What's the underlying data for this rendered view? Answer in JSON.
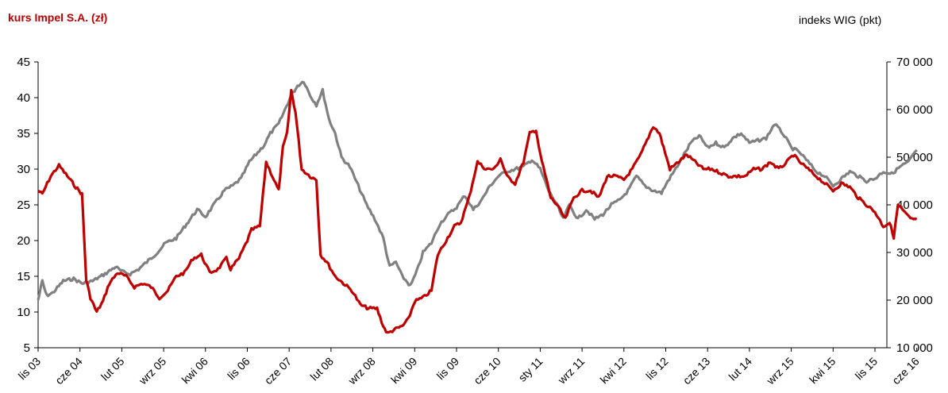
{
  "chart_data": {
    "type": "line",
    "left_axis_title": "kurs Impel S.A. (zł)",
    "right_axis_title": "indeks WIG (pkt)",
    "left_ticks": [
      "5",
      "10",
      "15",
      "20",
      "25",
      "30",
      "35",
      "40",
      "45"
    ],
    "left_ylim": [
      5,
      45
    ],
    "right_ticks": [
      "10 000",
      "20 000",
      "30 000",
      "40 000",
      "50 000",
      "60 000",
      "70 000"
    ],
    "right_ylim": [
      10000,
      70000
    ],
    "categories": [
      "lis 03",
      "cze 04",
      "lut 05",
      "wrz 05",
      "kwi 06",
      "lis 06",
      "cze 07",
      "lut 08",
      "wrz 08",
      "kwi 09",
      "lis 09",
      "cze 10",
      "sty 11",
      "wrz 11",
      "kwi 12",
      "lis 12",
      "cze 13",
      "lut 14",
      "wrz 15",
      "kwi 15",
      "lis 15",
      "cze 16"
    ],
    "grid": false,
    "colors": {
      "impel": "#c00000",
      "wig": "#808080"
    },
    "series": [
      {
        "axis": "left",
        "color": "#c00000",
        "values": [
          [
            0,
            27
          ],
          [
            0.1,
            26.5
          ],
          [
            0.3,
            29
          ],
          [
            0.5,
            30.5
          ],
          [
            0.7,
            29
          ],
          [
            0.9,
            27.5
          ],
          [
            1.05,
            26.5
          ],
          [
            1.15,
            14.5
          ],
          [
            1.25,
            12
          ],
          [
            1.4,
            10
          ],
          [
            1.55,
            11.5
          ],
          [
            1.7,
            14
          ],
          [
            1.9,
            15.5
          ],
          [
            2.1,
            15
          ],
          [
            2.3,
            13.5
          ],
          [
            2.5,
            14
          ],
          [
            2.7,
            13.5
          ],
          [
            2.9,
            12
          ],
          [
            3.1,
            13
          ],
          [
            3.3,
            15
          ],
          [
            3.5,
            15.5
          ],
          [
            3.7,
            17.5
          ],
          [
            3.9,
            18
          ],
          [
            4.1,
            15.5
          ],
          [
            4.3,
            16
          ],
          [
            4.5,
            17.5
          ],
          [
            4.6,
            16
          ],
          [
            4.8,
            17.5
          ],
          [
            5.0,
            20
          ],
          [
            5.1,
            21.5
          ],
          [
            5.3,
            22
          ],
          [
            5.45,
            31
          ],
          [
            5.6,
            29
          ],
          [
            5.75,
            27
          ],
          [
            5.85,
            33
          ],
          [
            5.95,
            35
          ],
          [
            6.05,
            41
          ],
          [
            6.15,
            38
          ],
          [
            6.3,
            30
          ],
          [
            6.5,
            29
          ],
          [
            6.65,
            28.5
          ],
          [
            6.75,
            18
          ],
          [
            6.9,
            17
          ],
          [
            7.1,
            15
          ],
          [
            7.3,
            14
          ],
          [
            7.5,
            13
          ],
          [
            7.7,
            11
          ],
          [
            7.9,
            10.5
          ],
          [
            8.1,
            10.5
          ],
          [
            8.25,
            8
          ],
          [
            8.35,
            7
          ],
          [
            8.5,
            7.5
          ],
          [
            8.7,
            8
          ],
          [
            8.85,
            9
          ],
          [
            9.0,
            11.5
          ],
          [
            9.2,
            12
          ],
          [
            9.4,
            13
          ],
          [
            9.55,
            18
          ],
          [
            9.75,
            20
          ],
          [
            9.95,
            22
          ],
          [
            10.1,
            22.5
          ],
          [
            10.3,
            26
          ],
          [
            10.5,
            31
          ],
          [
            10.7,
            30
          ],
          [
            10.9,
            30
          ],
          [
            11.05,
            31.5
          ],
          [
            11.2,
            29
          ],
          [
            11.4,
            28
          ],
          [
            11.6,
            31
          ],
          [
            11.75,
            35
          ],
          [
            11.9,
            35.5
          ],
          [
            12.0,
            32
          ],
          [
            12.15,
            28.5
          ],
          [
            12.25,
            26
          ],
          [
            12.4,
            25
          ],
          [
            12.6,
            23
          ],
          [
            12.8,
            26
          ],
          [
            13.0,
            27
          ],
          [
            13.2,
            27
          ],
          [
            13.4,
            26
          ],
          [
            13.6,
            29
          ],
          [
            13.8,
            29
          ],
          [
            14.0,
            28.5
          ],
          [
            14.2,
            30
          ],
          [
            14.4,
            32
          ],
          [
            14.55,
            34
          ],
          [
            14.7,
            36
          ],
          [
            14.85,
            35
          ],
          [
            14.95,
            33
          ],
          [
            15.1,
            30
          ],
          [
            15.3,
            31
          ],
          [
            15.5,
            32
          ],
          [
            15.7,
            31
          ],
          [
            15.9,
            30
          ],
          [
            16.1,
            30
          ],
          [
            16.3,
            29.5
          ],
          [
            16.5,
            29
          ],
          [
            16.7,
            29
          ],
          [
            16.9,
            29
          ],
          [
            17.1,
            30
          ],
          [
            17.3,
            30
          ],
          [
            17.5,
            31
          ],
          [
            17.7,
            30
          ],
          [
            17.9,
            31
          ],
          [
            18.05,
            32
          ],
          [
            18.2,
            31
          ],
          [
            18.4,
            30
          ],
          [
            18.6,
            29
          ],
          [
            18.8,
            28
          ],
          [
            19.0,
            27
          ],
          [
            19.2,
            28
          ],
          [
            19.4,
            27.5
          ],
          [
            19.6,
            26
          ],
          [
            19.8,
            25
          ],
          [
            20.0,
            24
          ],
          [
            20.2,
            22
          ],
          [
            20.35,
            22.5
          ],
          [
            20.45,
            20.5
          ],
          [
            20.55,
            25
          ],
          [
            20.7,
            24
          ],
          [
            20.85,
            23
          ],
          [
            21.0,
            23
          ]
        ]
      },
      {
        "axis": "right",
        "color": "#808080",
        "values": [
          [
            0,
            20000
          ],
          [
            0.1,
            24000
          ],
          [
            0.2,
            21000
          ],
          [
            0.35,
            21500
          ],
          [
            0.6,
            24000
          ],
          [
            0.85,
            24500
          ],
          [
            1.05,
            23500
          ],
          [
            1.3,
            24000
          ],
          [
            1.6,
            25500
          ],
          [
            1.85,
            27000
          ],
          [
            2.0,
            26000
          ],
          [
            2.2,
            25500
          ],
          [
            2.4,
            26500
          ],
          [
            2.6,
            28000
          ],
          [
            2.85,
            30000
          ],
          [
            3.05,
            32000
          ],
          [
            3.3,
            33000
          ],
          [
            3.55,
            36000
          ],
          [
            3.8,
            39000
          ],
          [
            4.0,
            37500
          ],
          [
            4.2,
            40000
          ],
          [
            4.45,
            43000
          ],
          [
            4.65,
            44000
          ],
          [
            4.85,
            45500
          ],
          [
            5.05,
            49000
          ],
          [
            5.25,
            51000
          ],
          [
            5.4,
            52500
          ],
          [
            5.55,
            55000
          ],
          [
            5.75,
            57000
          ],
          [
            5.9,
            60000
          ],
          [
            6.05,
            63000
          ],
          [
            6.2,
            65000
          ],
          [
            6.35,
            66000
          ],
          [
            6.5,
            63000
          ],
          [
            6.65,
            61000
          ],
          [
            6.8,
            64000
          ],
          [
            6.95,
            58000
          ],
          [
            7.1,
            55000
          ],
          [
            7.25,
            50000
          ],
          [
            7.45,
            48000
          ],
          [
            7.65,
            44000
          ],
          [
            7.85,
            40000
          ],
          [
            8.05,
            37000
          ],
          [
            8.25,
            33000
          ],
          [
            8.4,
            27000
          ],
          [
            8.55,
            28000
          ],
          [
            8.7,
            25000
          ],
          [
            8.9,
            23000
          ],
          [
            9.05,
            26000
          ],
          [
            9.2,
            30000
          ],
          [
            9.4,
            32000
          ],
          [
            9.6,
            36000
          ],
          [
            9.8,
            38000
          ],
          [
            10.0,
            39500
          ],
          [
            10.2,
            42000
          ],
          [
            10.4,
            39000
          ],
          [
            10.6,
            41000
          ],
          [
            10.8,
            44000
          ],
          [
            11.0,
            46000
          ],
          [
            11.2,
            47000
          ],
          [
            11.4,
            47500
          ],
          [
            11.6,
            48000
          ],
          [
            11.8,
            49500
          ],
          [
            12.0,
            47500
          ],
          [
            12.2,
            43000
          ],
          [
            12.4,
            40000
          ],
          [
            12.55,
            37000
          ],
          [
            12.7,
            40000
          ],
          [
            12.9,
            37000
          ],
          [
            13.1,
            39000
          ],
          [
            13.3,
            37000
          ],
          [
            13.5,
            38000
          ],
          [
            13.7,
            40000
          ],
          [
            13.9,
            41000
          ],
          [
            14.1,
            43000
          ],
          [
            14.3,
            46000
          ],
          [
            14.5,
            44000
          ],
          [
            14.7,
            43000
          ],
          [
            14.9,
            42500
          ],
          [
            15.05,
            45000
          ],
          [
            15.2,
            47000
          ],
          [
            15.4,
            50000
          ],
          [
            15.6,
            53000
          ],
          [
            15.8,
            54500
          ],
          [
            16.0,
            52000
          ],
          [
            16.2,
            53000
          ],
          [
            16.4,
            52000
          ],
          [
            16.6,
            54000
          ],
          [
            16.8,
            55000
          ],
          [
            17.0,
            53000
          ],
          [
            17.2,
            53500
          ],
          [
            17.4,
            54000
          ],
          [
            17.6,
            57000
          ],
          [
            17.8,
            55000
          ],
          [
            18.0,
            52000
          ],
          [
            18.2,
            51000
          ],
          [
            18.4,
            49000
          ],
          [
            18.6,
            47000
          ],
          [
            18.8,
            46000
          ],
          [
            19.0,
            44000
          ],
          [
            19.2,
            45500
          ],
          [
            19.4,
            47000
          ],
          [
            19.6,
            46000
          ],
          [
            19.8,
            45000
          ],
          [
            20.0,
            45500
          ],
          [
            20.2,
            47000
          ],
          [
            20.4,
            46500
          ],
          [
            20.6,
            48000
          ],
          [
            20.8,
            49000
          ],
          [
            21.0,
            51500
          ]
        ]
      }
    ]
  }
}
